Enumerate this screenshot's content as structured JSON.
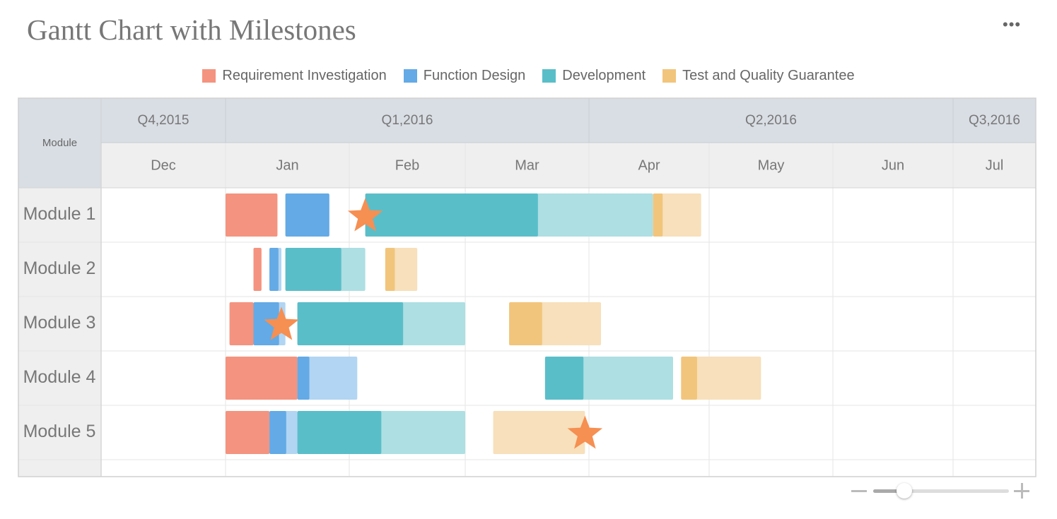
{
  "title": "Gantt Chart with Milestones",
  "menu_icon": "more-horizontal-icon",
  "legend": [
    {
      "label": "Requirement Investigation",
      "color": "#F4937F"
    },
    {
      "label": "Function Design",
      "color": "#63AAE6"
    },
    {
      "label": "Development",
      "color": "#5ABEC9"
    },
    {
      "label": "Test and Quality Guarantee",
      "color": "#F2C57C"
    }
  ],
  "chart_data": {
    "type": "gantt",
    "title": "Gantt Chart with Milestones",
    "row_header": "Module",
    "quarters": [
      "Q4,2015",
      "Q1,2016",
      "Q2,2016",
      "Q3,2016"
    ],
    "months": [
      "Dec",
      "Jan",
      "Feb",
      "Mar",
      "Apr",
      "May",
      "Jun",
      "Jul"
    ],
    "rows": [
      "Module 1",
      "Module 2",
      "Module 3",
      "Module 4",
      "Module 5"
    ],
    "tasks": [
      {
        "row": 0,
        "phase": 0,
        "start": "2016-01-01",
        "end": "2016-01-14",
        "progress": 1.0
      },
      {
        "row": 0,
        "phase": 1,
        "start": "2016-01-16",
        "end": "2016-01-27",
        "progress": 1.0
      },
      {
        "row": 0,
        "phase": 2,
        "start": "2016-02-05",
        "end": "2016-04-17",
        "progress": 0.6
      },
      {
        "row": 0,
        "phase": 3,
        "start": "2016-04-17",
        "end": "2016-04-29",
        "progress": 0.2
      },
      {
        "row": 1,
        "phase": 0,
        "start": "2016-01-08",
        "end": "2016-01-10",
        "progress": 1.0
      },
      {
        "row": 1,
        "phase": 1,
        "start": "2016-01-12",
        "end": "2016-01-15",
        "progress": 0.75
      },
      {
        "row": 1,
        "phase": 2,
        "start": "2016-01-16",
        "end": "2016-02-05",
        "progress": 0.7
      },
      {
        "row": 1,
        "phase": 3,
        "start": "2016-02-10",
        "end": "2016-02-18",
        "progress": 0.3
      },
      {
        "row": 2,
        "phase": 0,
        "start": "2016-01-02",
        "end": "2016-01-08",
        "progress": 1.0
      },
      {
        "row": 2,
        "phase": 1,
        "start": "2016-01-08",
        "end": "2016-01-16",
        "progress": 0.8
      },
      {
        "row": 2,
        "phase": 2,
        "start": "2016-01-19",
        "end": "2016-03-01",
        "progress": 0.63
      },
      {
        "row": 2,
        "phase": 3,
        "start": "2016-03-12",
        "end": "2016-04-04",
        "progress": 0.36
      },
      {
        "row": 3,
        "phase": 0,
        "start": "2016-01-01",
        "end": "2016-01-19",
        "progress": 1.0
      },
      {
        "row": 3,
        "phase": 1,
        "start": "2016-01-19",
        "end": "2016-02-03",
        "progress": 0.2
      },
      {
        "row": 3,
        "phase": 2,
        "start": "2016-03-21",
        "end": "2016-04-22",
        "progress": 0.3
      },
      {
        "row": 3,
        "phase": 3,
        "start": "2016-04-24",
        "end": "2016-05-14",
        "progress": 0.2
      },
      {
        "row": 4,
        "phase": 0,
        "start": "2016-01-01",
        "end": "2016-01-12",
        "progress": 1.0
      },
      {
        "row": 4,
        "phase": 1,
        "start": "2016-01-12",
        "end": "2016-01-19",
        "progress": 0.6
      },
      {
        "row": 4,
        "phase": 2,
        "start": "2016-01-19",
        "end": "2016-03-01",
        "progress": 0.5
      },
      {
        "row": 4,
        "phase": 3,
        "start": "2016-03-08",
        "end": "2016-03-31",
        "progress": 0.0
      }
    ],
    "milestones": [
      {
        "row": 0,
        "date": "2016-02-05"
      },
      {
        "row": 2,
        "date": "2016-01-15"
      },
      {
        "row": 4,
        "date": "2016-03-31"
      }
    ],
    "milestone_color": "#F68F52",
    "zoom_level": 0.23
  }
}
